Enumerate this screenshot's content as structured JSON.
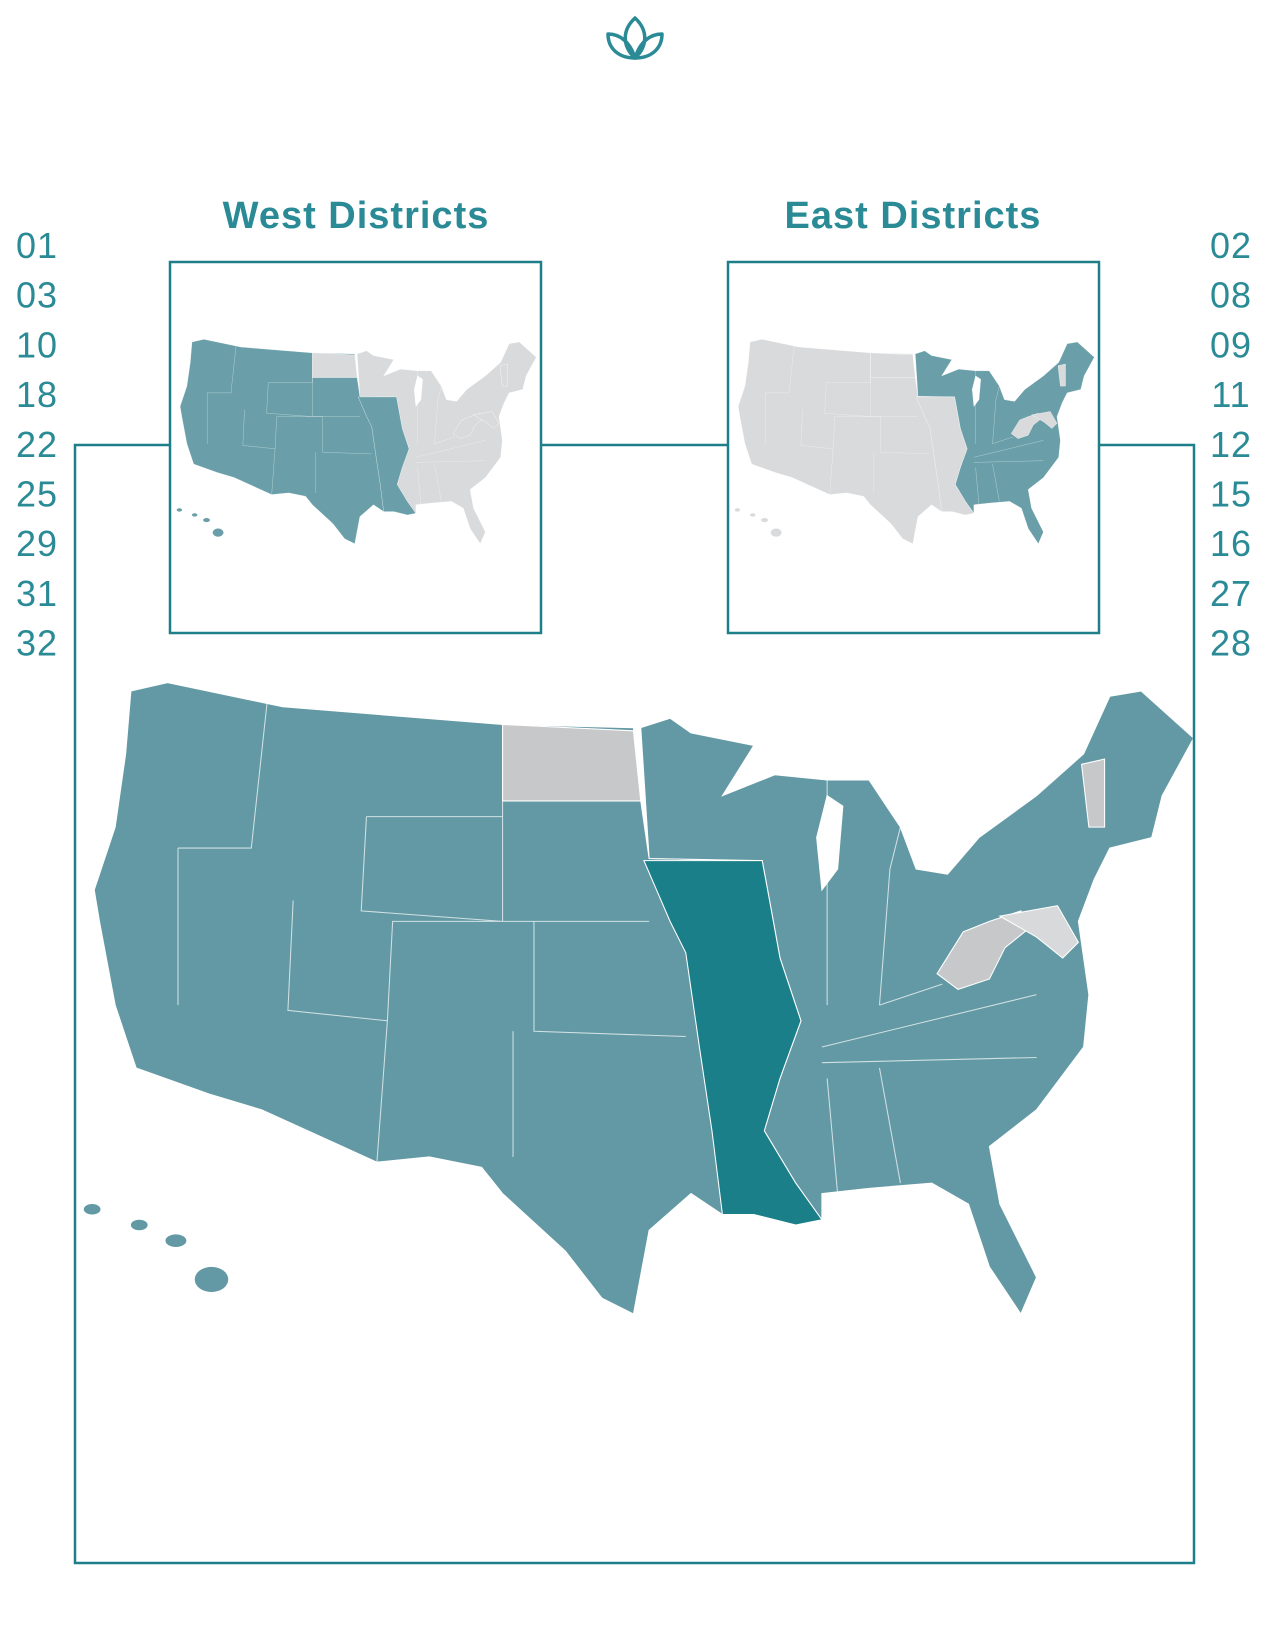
{
  "west": {
    "title": "West Districts",
    "districts": [
      "01",
      "03",
      "10",
      "18",
      "22",
      "25",
      "29",
      "31",
      "32"
    ]
  },
  "east": {
    "title": "East Districts",
    "districts": [
      "02",
      "08",
      "09",
      "11",
      "12",
      "15",
      "16",
      "27",
      "28"
    ]
  }
}
